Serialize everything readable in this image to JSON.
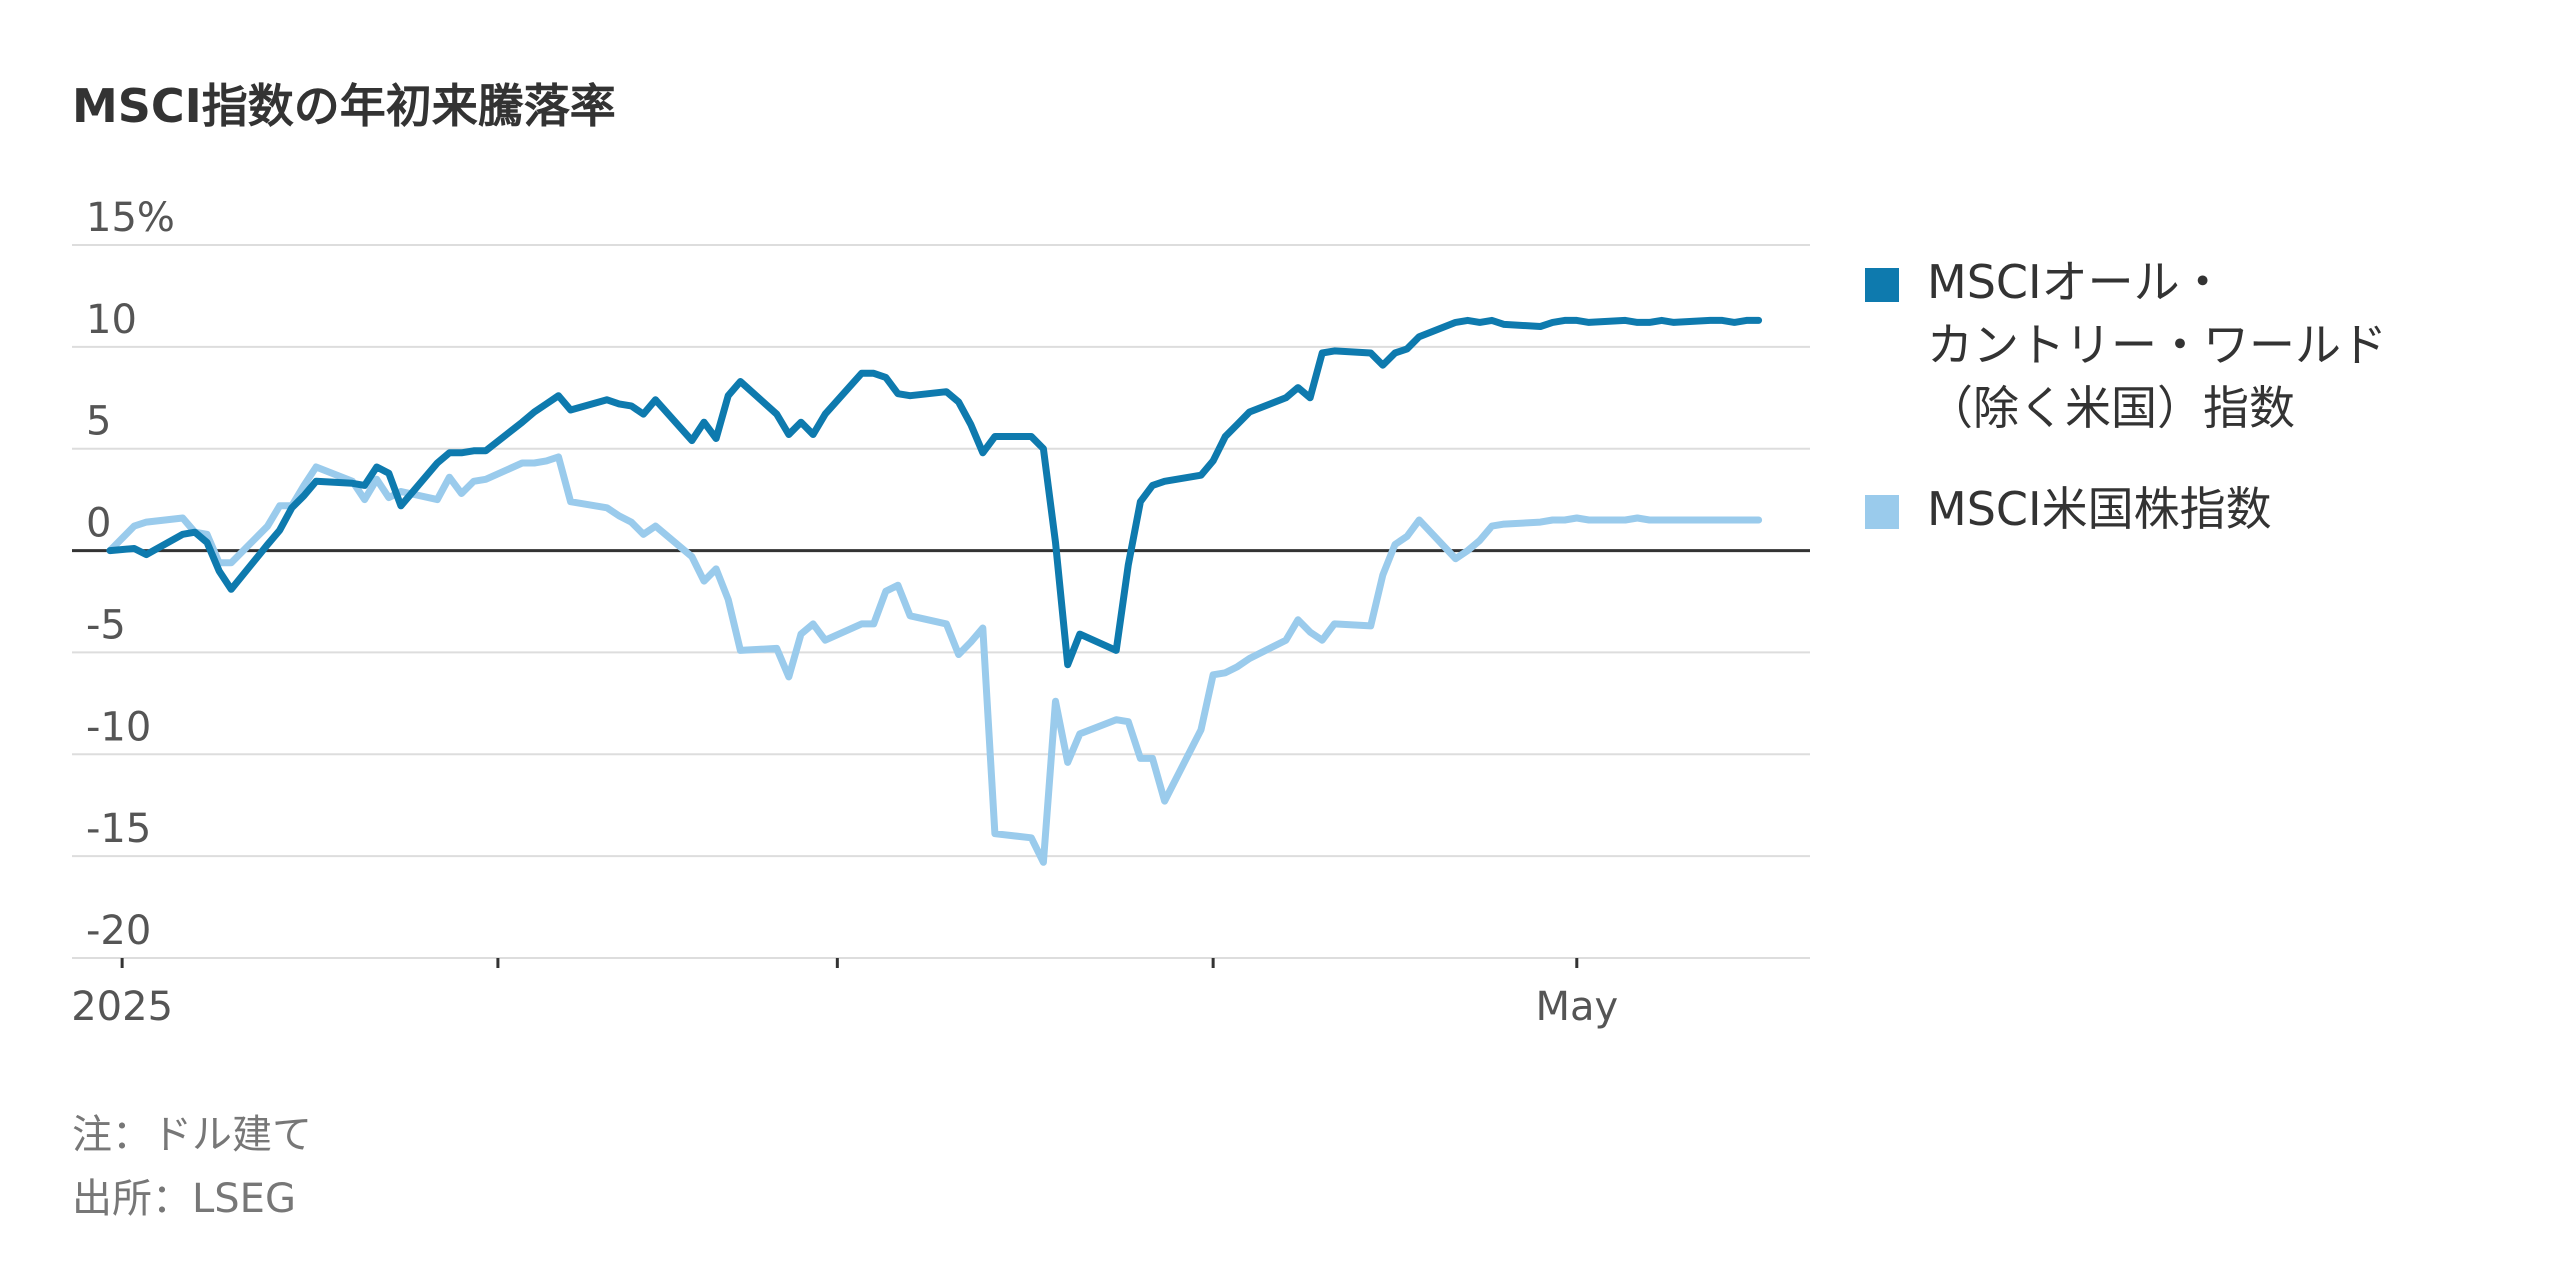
{
  "title": "MSCI指数の年初来騰落率",
  "footnotes": [
    "注：ドル建て",
    "出所：LSEG"
  ],
  "colors": {
    "series1": "#0E7AAE",
    "series2": "#9ACBEC",
    "grid": "#dddddd",
    "zero": "#333333",
    "text": "#555555"
  },
  "chart_data": {
    "type": "line",
    "title": "MSCI指数の年初来騰落率",
    "xlabel": "",
    "ylabel": "",
    "ylim": [
      -20,
      15
    ],
    "yticks": [
      15,
      10,
      5,
      0,
      -5,
      -10,
      -15,
      -20
    ],
    "ytick_labels": [
      "15%",
      "10",
      "5",
      "0",
      "-5",
      "-10",
      "-15",
      "-20"
    ],
    "xlim": [
      "2024-12-31",
      "2025-05-19"
    ],
    "xticks": [
      "2025-01-01",
      "2025-02-01",
      "2025-03-01",
      "2025-04-01",
      "2025-05-01"
    ],
    "xtick_labels": [
      "2025",
      "",
      "",
      "",
      "May"
    ],
    "grid": true,
    "legend": "right",
    "series": [
      {
        "name": "MSCIオール・カントリー・ワールド（除く米国）指数",
        "legend_lines": [
          "MSCIオール・",
          "カントリー・ワールド",
          "（除く米国）指数"
        ],
        "x": [
          "2024-12-31",
          "2025-01-02",
          "2025-01-03",
          "2025-01-06",
          "2025-01-07",
          "2025-01-08",
          "2025-01-09",
          "2025-01-10",
          "2025-01-13",
          "2025-01-14",
          "2025-01-15",
          "2025-01-16",
          "2025-01-17",
          "2025-01-20",
          "2025-01-21",
          "2025-01-22",
          "2025-01-23",
          "2025-01-24",
          "2025-01-27",
          "2025-01-28",
          "2025-01-29",
          "2025-01-30",
          "2025-01-31",
          "2025-02-03",
          "2025-02-04",
          "2025-02-05",
          "2025-02-06",
          "2025-02-07",
          "2025-02-10",
          "2025-02-11",
          "2025-02-12",
          "2025-02-13",
          "2025-02-14",
          "2025-02-17",
          "2025-02-18",
          "2025-02-19",
          "2025-02-20",
          "2025-02-21",
          "2025-02-24",
          "2025-02-25",
          "2025-02-26",
          "2025-02-27",
          "2025-02-28",
          "2025-03-03",
          "2025-03-04",
          "2025-03-05",
          "2025-03-06",
          "2025-03-07",
          "2025-03-10",
          "2025-03-11",
          "2025-03-12",
          "2025-03-13",
          "2025-03-14",
          "2025-03-17",
          "2025-03-18",
          "2025-03-19",
          "2025-03-20",
          "2025-03-21",
          "2025-03-24",
          "2025-03-25",
          "2025-03-26",
          "2025-03-27",
          "2025-03-28",
          "2025-03-31",
          "2025-04-01",
          "2025-04-02",
          "2025-04-03",
          "2025-04-04",
          "2025-04-07",
          "2025-04-08",
          "2025-04-09",
          "2025-04-10",
          "2025-04-11",
          "2025-04-14",
          "2025-04-15",
          "2025-04-16",
          "2025-04-17",
          "2025-04-18",
          "2025-04-21",
          "2025-04-22",
          "2025-04-23",
          "2025-04-24",
          "2025-04-25",
          "2025-04-28",
          "2025-04-29",
          "2025-04-30",
          "2025-05-01",
          "2025-05-02",
          "2025-05-05",
          "2025-05-06",
          "2025-05-07",
          "2025-05-08",
          "2025-05-09",
          "2025-05-12",
          "2025-05-13",
          "2025-05-14",
          "2025-05-15",
          "2025-05-16"
        ],
        "values": [
          0.0,
          0.1,
          -0.2,
          0.8,
          0.9,
          0.4,
          -1.0,
          -1.9,
          0.3,
          1.0,
          2.1,
          2.7,
          3.4,
          3.3,
          3.2,
          4.1,
          3.8,
          2.2,
          4.3,
          4.8,
          4.8,
          4.9,
          4.9,
          6.3,
          6.8,
          7.2,
          7.6,
          6.9,
          7.4,
          7.2,
          7.1,
          6.7,
          7.4,
          5.4,
          6.3,
          5.5,
          7.6,
          8.3,
          6.7,
          5.7,
          6.3,
          5.7,
          6.7,
          8.7,
          8.7,
          8.5,
          7.7,
          7.6,
          7.8,
          7.3,
          6.2,
          4.8,
          5.6,
          5.6,
          5.0,
          0.4,
          -5.6,
          -4.1,
          -4.9,
          -0.7,
          2.4,
          3.2,
          3.4,
          3.7,
          4.4,
          5.6,
          6.2,
          6.8,
          7.5,
          8.0,
          7.5,
          9.7,
          9.8,
          9.7,
          9.1,
          9.7,
          9.9,
          10.5,
          11.2,
          11.3,
          11.2,
          11.3,
          11.1,
          11.0,
          11.2,
          11.3,
          11.3,
          11.2,
          11.3,
          11.2,
          11.2,
          11.3,
          11.2,
          11.3,
          11.3,
          11.2,
          11.3,
          11.3
        ]
      },
      {
        "name": "MSCI米国株指数",
        "legend_lines": [
          "MSCI米国株指数"
        ],
        "x": [
          "2024-12-31",
          "2025-01-02",
          "2025-01-03",
          "2025-01-06",
          "2025-01-07",
          "2025-01-08",
          "2025-01-09",
          "2025-01-10",
          "2025-01-13",
          "2025-01-14",
          "2025-01-15",
          "2025-01-16",
          "2025-01-17",
          "2025-01-20",
          "2025-01-21",
          "2025-01-22",
          "2025-01-23",
          "2025-01-24",
          "2025-01-27",
          "2025-01-28",
          "2025-01-29",
          "2025-01-30",
          "2025-01-31",
          "2025-02-03",
          "2025-02-04",
          "2025-02-05",
          "2025-02-06",
          "2025-02-07",
          "2025-02-10",
          "2025-02-11",
          "2025-02-12",
          "2025-02-13",
          "2025-02-14",
          "2025-02-17",
          "2025-02-18",
          "2025-02-19",
          "2025-02-20",
          "2025-02-21",
          "2025-02-24",
          "2025-02-25",
          "2025-02-26",
          "2025-02-27",
          "2025-02-28",
          "2025-03-03",
          "2025-03-04",
          "2025-03-05",
          "2025-03-06",
          "2025-03-07",
          "2025-03-10",
          "2025-03-11",
          "2025-03-12",
          "2025-03-13",
          "2025-03-14",
          "2025-03-17",
          "2025-03-18",
          "2025-03-19",
          "2025-03-20",
          "2025-03-21",
          "2025-03-24",
          "2025-03-25",
          "2025-03-26",
          "2025-03-27",
          "2025-03-28",
          "2025-03-31",
          "2025-04-01",
          "2025-04-02",
          "2025-04-03",
          "2025-04-04",
          "2025-04-07",
          "2025-04-08",
          "2025-04-09",
          "2025-04-10",
          "2025-04-11",
          "2025-04-14",
          "2025-04-15",
          "2025-04-16",
          "2025-04-17",
          "2025-04-18",
          "2025-04-21",
          "2025-04-22",
          "2025-04-23",
          "2025-04-24",
          "2025-04-25",
          "2025-04-28",
          "2025-04-29",
          "2025-04-30",
          "2025-05-01",
          "2025-05-02",
          "2025-05-05",
          "2025-05-06",
          "2025-05-07",
          "2025-05-08",
          "2025-05-09",
          "2025-05-12",
          "2025-05-13",
          "2025-05-14",
          "2025-05-15",
          "2025-05-16"
        ],
        "values": [
          0.0,
          1.2,
          1.4,
          1.6,
          0.9,
          0.8,
          -0.6,
          -0.6,
          1.2,
          2.2,
          2.2,
          3.2,
          4.1,
          3.4,
          2.5,
          3.5,
          2.6,
          2.9,
          2.5,
          3.6,
          2.8,
          3.4,
          3.5,
          4.3,
          4.3,
          4.4,
          4.6,
          2.4,
          2.1,
          1.7,
          1.4,
          0.8,
          1.2,
          -0.3,
          -1.5,
          -0.9,
          -2.4,
          -4.9,
          -4.8,
          -6.2,
          -4.1,
          -3.6,
          -4.4,
          -3.6,
          -3.6,
          -2.0,
          -1.7,
          -3.2,
          -3.6,
          -5.1,
          -4.5,
          -3.8,
          -13.9,
          -14.1,
          -15.3,
          -7.4,
          -10.4,
          -9.0,
          -8.3,
          -8.4,
          -10.2,
          -10.2,
          -12.3,
          -8.8,
          -6.1,
          -6.0,
          -5.7,
          -5.3,
          -4.4,
          -3.4,
          -4.0,
          -4.4,
          -3.6,
          -3.7,
          -1.2,
          0.3,
          0.7,
          1.5,
          -0.4,
          0.0,
          0.5,
          1.2,
          1.3,
          1.4,
          1.5,
          1.5,
          1.6,
          1.5,
          1.5,
          1.6,
          1.5,
          1.5,
          1.5,
          1.5,
          1.5,
          1.5,
          1.5,
          1.5
        ]
      }
    ]
  }
}
